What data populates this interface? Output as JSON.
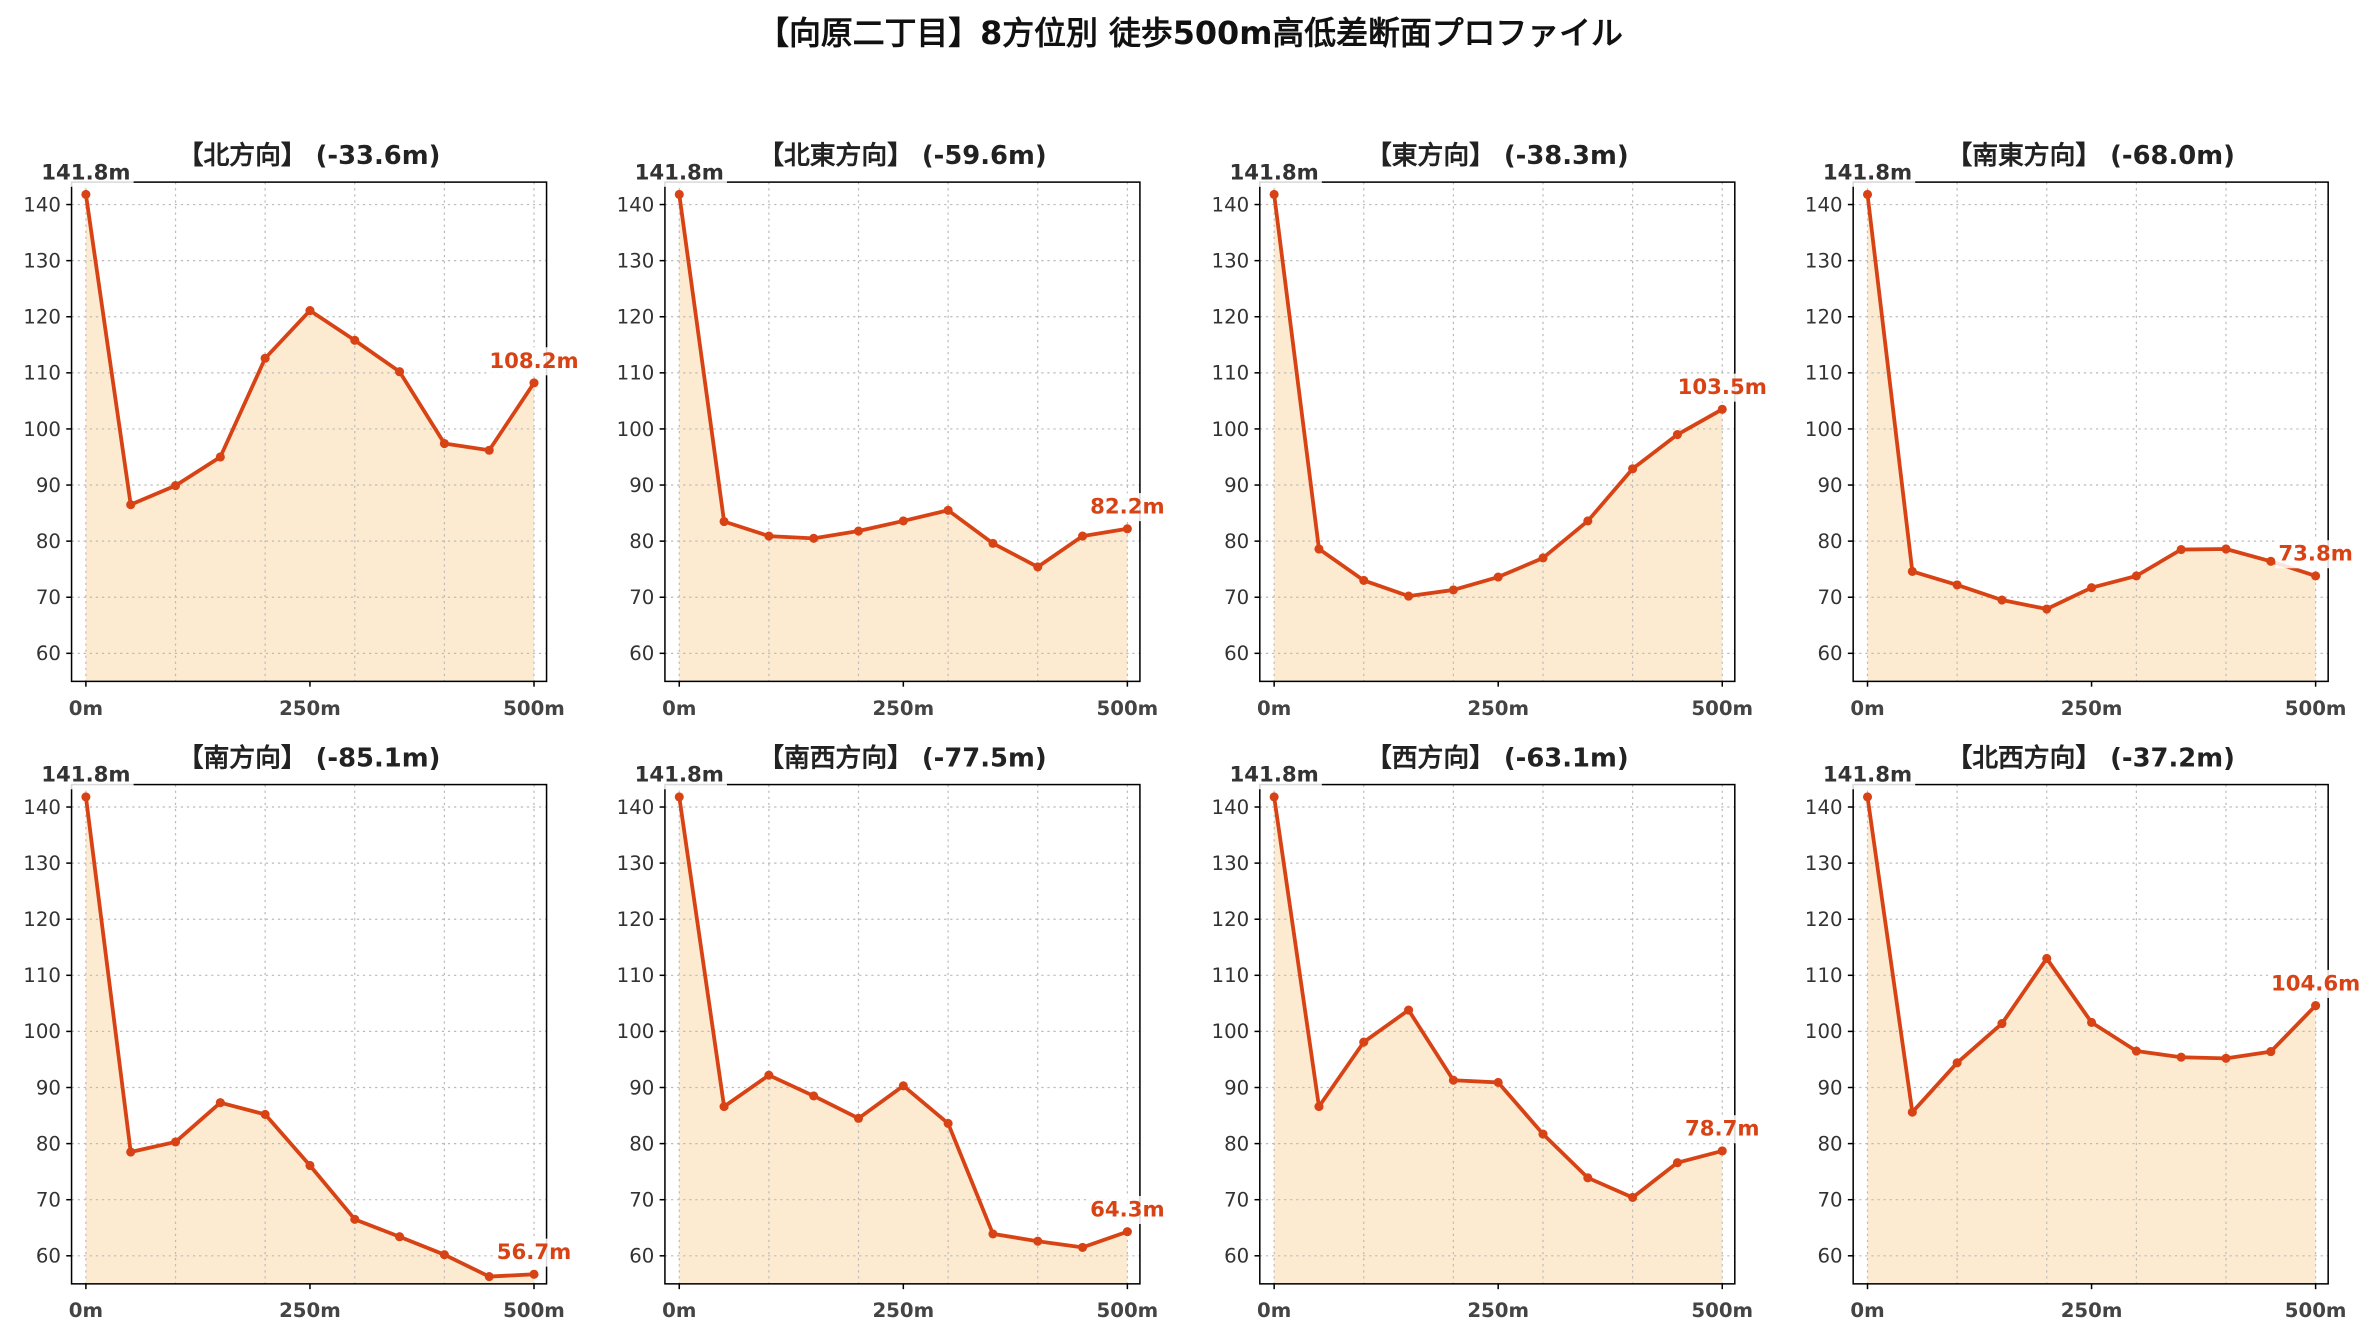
{
  "page_title": "【向原二丁目】8方位別 徒歩500m高低差断面プロファイル",
  "colors": {
    "line": "#D84315",
    "fill": "#FDEBD1",
    "start_label": "#333333",
    "end_label": "#D84315",
    "grid": "#BBBBBB",
    "axes": "#000000",
    "background": "#FFFFFF"
  },
  "chart_data": [
    {
      "type": "area",
      "title": "【北方向】 (-33.6m)",
      "x": [
        0,
        50,
        100,
        150,
        200,
        250,
        300,
        350,
        400,
        450,
        500
      ],
      "values": [
        141.8,
        86.5,
        89.9,
        95.0,
        112.6,
        121.1,
        115.8,
        110.2,
        97.4,
        96.2,
        108.2
      ],
      "start_label": "141.8m",
      "end_label": "108.2m",
      "xlim": [
        -16,
        514
      ],
      "ylim": [
        55,
        144
      ],
      "xticks": [
        0,
        250,
        500
      ],
      "xticklabels": [
        "0m",
        "250m",
        "500m"
      ],
      "yticks": [
        60,
        70,
        80,
        90,
        100,
        110,
        120,
        130,
        140
      ],
      "yticklabels": [
        "60",
        "70",
        "80",
        "90",
        "100",
        "110",
        "120",
        "130",
        "140"
      ],
      "grid": true,
      "markers": true
    },
    {
      "type": "area",
      "title": "【北東方向】 (-59.6m)",
      "x": [
        0,
        50,
        100,
        150,
        200,
        250,
        300,
        350,
        400,
        450,
        500
      ],
      "values": [
        141.8,
        83.5,
        80.9,
        80.5,
        81.8,
        83.6,
        85.5,
        79.6,
        75.4,
        80.9,
        82.2
      ],
      "start_label": "141.8m",
      "end_label": "82.2m",
      "xlim": [
        -16,
        514
      ],
      "ylim": [
        55,
        144
      ],
      "xticks": [
        0,
        250,
        500
      ],
      "xticklabels": [
        "0m",
        "250m",
        "500m"
      ],
      "yticks": [
        60,
        70,
        80,
        90,
        100,
        110,
        120,
        130,
        140
      ],
      "yticklabels": [
        "60",
        "70",
        "80",
        "90",
        "100",
        "110",
        "120",
        "130",
        "140"
      ],
      "grid": true,
      "markers": true
    },
    {
      "type": "area",
      "title": "【東方向】 (-38.3m)",
      "x": [
        0,
        50,
        100,
        150,
        200,
        250,
        300,
        350,
        400,
        450,
        500
      ],
      "values": [
        141.8,
        78.6,
        73.0,
        70.2,
        71.3,
        73.6,
        77.0,
        83.6,
        92.9,
        99.0,
        103.5
      ],
      "start_label": "141.8m",
      "end_label": "103.5m",
      "xlim": [
        -16,
        514
      ],
      "ylim": [
        55,
        144
      ],
      "xticks": [
        0,
        250,
        500
      ],
      "xticklabels": [
        "0m",
        "250m",
        "500m"
      ],
      "yticks": [
        60,
        70,
        80,
        90,
        100,
        110,
        120,
        130,
        140
      ],
      "yticklabels": [
        "60",
        "70",
        "80",
        "90",
        "100",
        "110",
        "120",
        "130",
        "140"
      ],
      "grid": true,
      "markers": true
    },
    {
      "type": "area",
      "title": "【南東方向】 (-68.0m)",
      "x": [
        0,
        50,
        100,
        150,
        200,
        250,
        300,
        350,
        400,
        450,
        500
      ],
      "values": [
        141.8,
        74.6,
        72.2,
        69.5,
        67.9,
        71.7,
        73.8,
        78.5,
        78.6,
        76.4,
        73.8
      ],
      "start_label": "141.8m",
      "end_label": "73.8m",
      "xlim": [
        -16,
        514
      ],
      "ylim": [
        55,
        144
      ],
      "xticks": [
        0,
        250,
        500
      ],
      "xticklabels": [
        "0m",
        "250m",
        "500m"
      ],
      "yticks": [
        60,
        70,
        80,
        90,
        100,
        110,
        120,
        130,
        140
      ],
      "yticklabels": [
        "60",
        "70",
        "80",
        "90",
        "100",
        "110",
        "120",
        "130",
        "140"
      ],
      "grid": true,
      "markers": true
    },
    {
      "type": "area",
      "title": "【南方向】 (-85.1m)",
      "x": [
        0,
        50,
        100,
        150,
        200,
        250,
        300,
        350,
        400,
        450,
        500
      ],
      "values": [
        141.8,
        78.5,
        80.3,
        87.3,
        85.2,
        76.1,
        66.5,
        63.4,
        60.2,
        56.3,
        56.7
      ],
      "start_label": "141.8m",
      "end_label": "56.7m",
      "xlim": [
        -16,
        514
      ],
      "ylim": [
        55,
        144
      ],
      "xticks": [
        0,
        250,
        500
      ],
      "xticklabels": [
        "0m",
        "250m",
        "500m"
      ],
      "yticks": [
        60,
        70,
        80,
        90,
        100,
        110,
        120,
        130,
        140
      ],
      "yticklabels": [
        "60",
        "70",
        "80",
        "90",
        "100",
        "110",
        "120",
        "130",
        "140"
      ],
      "grid": true,
      "markers": true
    },
    {
      "type": "area",
      "title": "【南西方向】 (-77.5m)",
      "x": [
        0,
        50,
        100,
        150,
        200,
        250,
        300,
        350,
        400,
        450,
        500
      ],
      "values": [
        141.8,
        86.6,
        92.2,
        88.5,
        84.5,
        90.3,
        83.6,
        63.9,
        62.6,
        61.5,
        64.3
      ],
      "start_label": "141.8m",
      "end_label": "64.3m",
      "xlim": [
        -16,
        514
      ],
      "ylim": [
        55,
        144
      ],
      "xticks": [
        0,
        250,
        500
      ],
      "xticklabels": [
        "0m",
        "250m",
        "500m"
      ],
      "yticks": [
        60,
        70,
        80,
        90,
        100,
        110,
        120,
        130,
        140
      ],
      "yticklabels": [
        "60",
        "70",
        "80",
        "90",
        "100",
        "110",
        "120",
        "130",
        "140"
      ],
      "grid": true,
      "markers": true
    },
    {
      "type": "area",
      "title": "【西方向】 (-63.1m)",
      "x": [
        0,
        50,
        100,
        150,
        200,
        250,
        300,
        350,
        400,
        450,
        500
      ],
      "values": [
        141.8,
        86.6,
        98.1,
        103.8,
        91.3,
        90.9,
        81.7,
        73.9,
        70.4,
        76.6,
        78.7
      ],
      "start_label": "141.8m",
      "end_label": "78.7m",
      "xlim": [
        -16,
        514
      ],
      "ylim": [
        55,
        144
      ],
      "xticks": [
        0,
        250,
        500
      ],
      "xticklabels": [
        "0m",
        "250m",
        "500m"
      ],
      "yticks": [
        60,
        70,
        80,
        90,
        100,
        110,
        120,
        130,
        140
      ],
      "yticklabels": [
        "60",
        "70",
        "80",
        "90",
        "100",
        "110",
        "120",
        "130",
        "140"
      ],
      "grid": true,
      "markers": true
    },
    {
      "type": "area",
      "title": "【北西方向】 (-37.2m)",
      "x": [
        0,
        50,
        100,
        150,
        200,
        250,
        300,
        350,
        400,
        450,
        500
      ],
      "values": [
        141.8,
        85.6,
        94.4,
        101.4,
        113.0,
        101.6,
        96.5,
        95.4,
        95.2,
        96.4,
        104.6
      ],
      "start_label": "141.8m",
      "end_label": "104.6m",
      "xlim": [
        -16,
        514
      ],
      "ylim": [
        55,
        144
      ],
      "xticks": [
        0,
        250,
        500
      ],
      "xticklabels": [
        "0m",
        "250m",
        "500m"
      ],
      "yticks": [
        60,
        70,
        80,
        90,
        100,
        110,
        120,
        130,
        140
      ],
      "yticklabels": [
        "60",
        "70",
        "80",
        "90",
        "100",
        "110",
        "120",
        "130",
        "140"
      ],
      "grid": true,
      "markers": true
    }
  ]
}
